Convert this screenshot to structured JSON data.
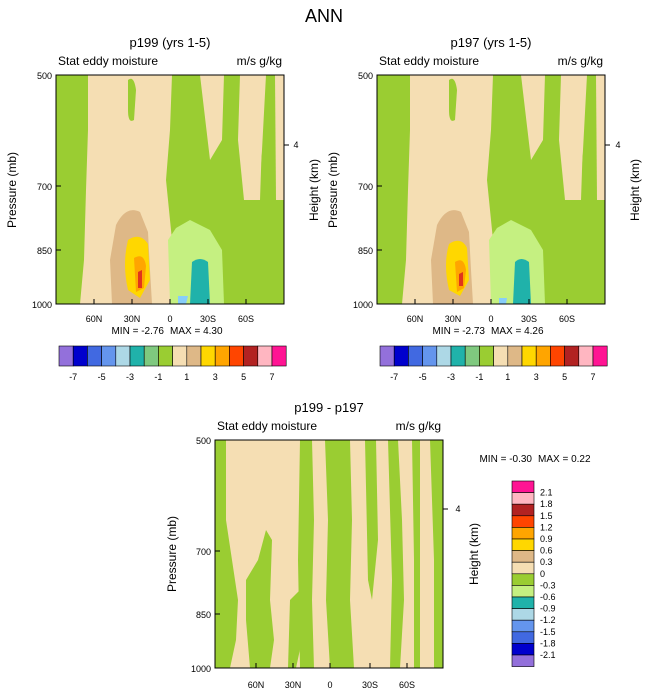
{
  "page_title": "ANN",
  "colors": {
    "tan": "#f5deb3",
    "green": "#9acd32",
    "light_green": "#c5f081",
    "dark_tan": "#deb887",
    "yellow": "#ffd700",
    "orange": "#ffa500",
    "red": "#e0341c",
    "teal": "#20b2aa",
    "light_blue": "#87cefa"
  },
  "chart_data": [
    {
      "type": "contour",
      "title": "p199 (yrs 1-5)",
      "left_label": "Stat eddy moisture",
      "right_label": "m/s g/kg",
      "ylabel": "Pressure (mb)",
      "ylabel_right": "Height (km)",
      "y_ticks": [
        "500",
        "700",
        "850",
        "1000"
      ],
      "y_right_ticks": [
        "4"
      ],
      "x_ticks": [
        "60N",
        "30N",
        "0",
        "30S",
        "60S"
      ],
      "min_label": "MIN = -2.76",
      "max_label": "MAX = 4.30",
      "min": -2.76,
      "max": 4.3,
      "colorbar_labels": [
        "-7",
        "-5",
        "-3",
        "-1",
        "1",
        "3",
        "5",
        "7"
      ],
      "colorbar_colors": [
        "#9370db",
        "#0000cd",
        "#4169e1",
        "#6495ed",
        "#add8e6",
        "#20b2aa",
        "#7fc97f",
        "#9acd32",
        "#f5deb3",
        "#deb887",
        "#ffd700",
        "#ffa500",
        "#ff4500",
        "#b22222",
        "#ffb6c1",
        "#ff1493"
      ]
    },
    {
      "type": "contour",
      "title": "p197 (yrs 1-5)",
      "left_label": "Stat eddy moisture",
      "right_label": "m/s g/kg",
      "ylabel": "Pressure (mb)",
      "ylabel_right": "Height (km)",
      "y_ticks": [
        "500",
        "700",
        "850",
        "1000"
      ],
      "y_right_ticks": [
        "4"
      ],
      "x_ticks": [
        "60N",
        "30N",
        "0",
        "30S",
        "60S"
      ],
      "min_label": "MIN = -2.73",
      "max_label": "MAX = 4.26",
      "min": -2.73,
      "max": 4.26,
      "colorbar_labels": [
        "-7",
        "-5",
        "-3",
        "-1",
        "1",
        "3",
        "5",
        "7"
      ],
      "colorbar_colors": [
        "#9370db",
        "#0000cd",
        "#4169e1",
        "#6495ed",
        "#add8e6",
        "#20b2aa",
        "#7fc97f",
        "#9acd32",
        "#f5deb3",
        "#deb887",
        "#ffd700",
        "#ffa500",
        "#ff4500",
        "#b22222",
        "#ffb6c1",
        "#ff1493"
      ]
    },
    {
      "type": "contour",
      "title": "p199 - p197",
      "left_label": "Stat eddy moisture",
      "right_label": "m/s g/kg",
      "ylabel": "Pressure (mb)",
      "ylabel_right": "Height (km)",
      "y_ticks": [
        "500",
        "700",
        "850",
        "1000"
      ],
      "y_right_ticks": [
        "4"
      ],
      "x_ticks": [
        "60N",
        "30N",
        "0",
        "30S",
        "60S"
      ],
      "min_label": "MIN = -0.30",
      "max_label": "MAX = 0.22",
      "min": -0.3,
      "max": 0.22,
      "colorbar_labels": [
        "2.1",
        "1.8",
        "1.5",
        "1.2",
        "0.9",
        "0.6",
        "0.3",
        "0",
        "-0.3",
        "-0.6",
        "-0.9",
        "-1.2",
        "-1.5",
        "-1.8",
        "-2.1"
      ],
      "colorbar_colors": [
        "#ff1493",
        "#ffb6c1",
        "#b22222",
        "#ff4500",
        "#ffa500",
        "#ffd700",
        "#deb887",
        "#f5deb3",
        "#9acd32",
        "#c5f081",
        "#20b2aa",
        "#add8e6",
        "#6495ed",
        "#4169e1",
        "#0000cd",
        "#9370db"
      ]
    }
  ]
}
